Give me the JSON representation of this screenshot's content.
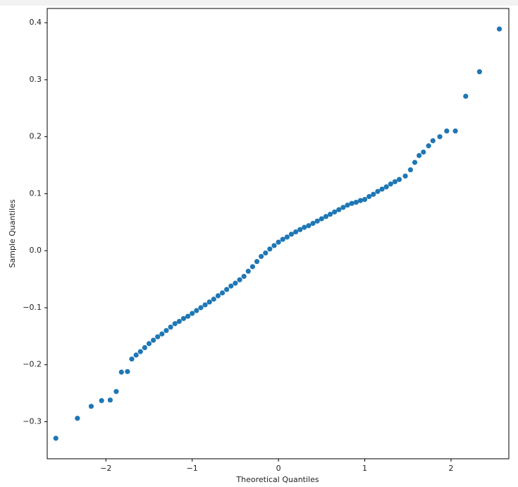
{
  "chart_data": {
    "type": "scatter",
    "x_label": "Theoretical Quantiles",
    "y_label": "Sample Quantiles",
    "color": "#1f77b4",
    "x": [
      -2.58,
      -2.33,
      -2.17,
      -2.05,
      -1.95,
      -1.88,
      -1.82,
      -1.75,
      -1.7,
      -1.65,
      -1.6,
      -1.55,
      -1.5,
      -1.45,
      -1.4,
      -1.35,
      -1.3,
      -1.25,
      -1.2,
      -1.15,
      -1.1,
      -1.05,
      -1.0,
      -0.95,
      -0.9,
      -0.85,
      -0.8,
      -0.75,
      -0.7,
      -0.65,
      -0.6,
      -0.55,
      -0.5,
      -0.45,
      -0.4,
      -0.35,
      -0.3,
      -0.25,
      -0.2,
      -0.15,
      -0.1,
      -0.05,
      0.0,
      0.05,
      0.1,
      0.15,
      0.2,
      0.25,
      0.3,
      0.35,
      0.4,
      0.45,
      0.5,
      0.55,
      0.6,
      0.65,
      0.7,
      0.75,
      0.8,
      0.85,
      0.9,
      0.95,
      1.0,
      1.05,
      1.1,
      1.15,
      1.2,
      1.25,
      1.3,
      1.35,
      1.4,
      1.47,
      1.53,
      1.58,
      1.63,
      1.68,
      1.74,
      1.79,
      1.87,
      1.95,
      2.05,
      2.17,
      2.33,
      2.56
    ],
    "values": [
      -0.329,
      -0.294,
      -0.273,
      -0.263,
      -0.262,
      -0.247,
      -0.213,
      -0.212,
      -0.19,
      -0.183,
      -0.177,
      -0.17,
      -0.163,
      -0.157,
      -0.151,
      -0.146,
      -0.14,
      -0.134,
      -0.128,
      -0.124,
      -0.119,
      -0.115,
      -0.11,
      -0.105,
      -0.1,
      -0.095,
      -0.09,
      -0.085,
      -0.079,
      -0.074,
      -0.068,
      -0.062,
      -0.057,
      -0.051,
      -0.045,
      -0.036,
      -0.028,
      -0.019,
      -0.01,
      -0.004,
      0.003,
      0.009,
      0.015,
      0.02,
      0.024,
      0.029,
      0.033,
      0.037,
      0.041,
      0.044,
      0.048,
      0.052,
      0.056,
      0.06,
      0.064,
      0.068,
      0.072,
      0.076,
      0.08,
      0.083,
      0.085,
      0.088,
      0.09,
      0.095,
      0.099,
      0.104,
      0.108,
      0.112,
      0.117,
      0.121,
      0.125,
      0.131,
      0.142,
      0.155,
      0.167,
      0.173,
      0.184,
      0.193,
      0.2,
      0.21,
      0.21,
      0.271,
      0.314,
      0.389
    ],
    "xlim": [
      -2.68,
      2.67
    ],
    "ylim": [
      -0.365,
      0.425
    ],
    "xticks": [
      {
        "value": -2,
        "label": "−2"
      },
      {
        "value": -1,
        "label": "−1"
      },
      0,
      1,
      2
    ],
    "yticks": [
      {
        "value": -0.3,
        "label": "−0.3"
      },
      {
        "value": -0.2,
        "label": "−0.2"
      },
      {
        "value": -0.1,
        "label": "−0.1"
      },
      {
        "value": 0,
        "label": "0.0"
      },
      0.1,
      0.2,
      0.3,
      0.4
    ]
  }
}
